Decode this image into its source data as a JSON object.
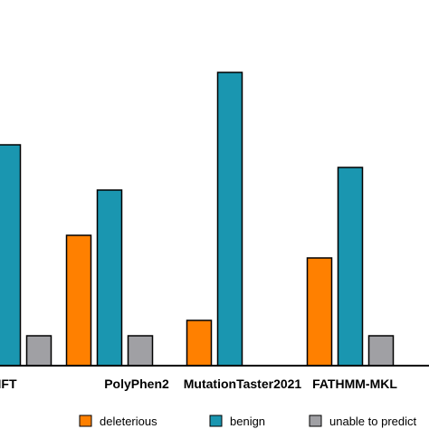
{
  "chart_data": {
    "type": "bar",
    "categories": [
      "SIFT",
      "PolyPhen2",
      "MutationTaster2021",
      "FATHMM-MKL"
    ],
    "visible_category_labels": [
      "IFT",
      "PolyPhen2",
      "MutationTaster2021",
      "FATHMM-MKL"
    ],
    "series": [
      {
        "name": "deleterious",
        "color": "#ff8000",
        "values": [
          null,
          144,
          50,
          119
        ]
      },
      {
        "name": "benign",
        "color": "#1a96b0",
        "values": [
          244,
          194,
          324,
          219
        ]
      },
      {
        "name": "unable to predict",
        "color": "#a0a0a4",
        "values": [
          33,
          33,
          0,
          33
        ]
      }
    ],
    "ylim": [
      0,
      400
    ],
    "grid": false,
    "legend_position": "bottom"
  }
}
